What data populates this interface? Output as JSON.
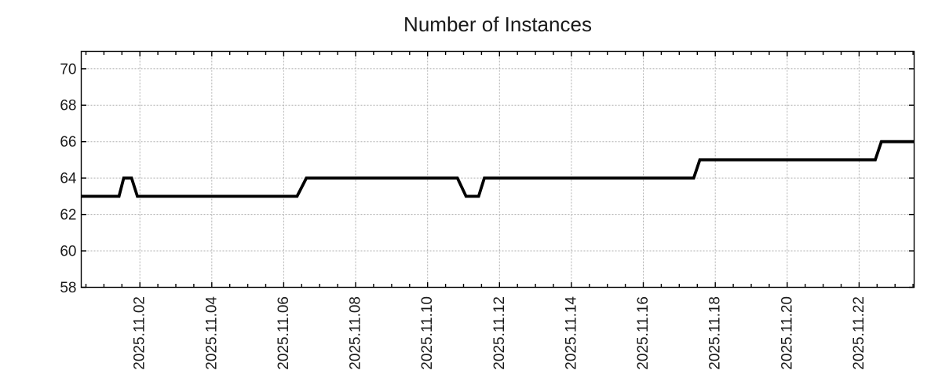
{
  "chart_data": {
    "type": "line",
    "title": "Number of Instances",
    "grid": true,
    "legend": false,
    "x_axis": {
      "tick_labels": [
        "2025.11.02",
        "2025.11.04",
        "2025.11.06",
        "2025.11.08",
        "2025.11.10",
        "2025.11.12",
        "2025.11.14",
        "2025.11.16",
        "2025.11.18",
        "2025.11.20",
        "2025.11.22"
      ],
      "tick_days": [
        2,
        4,
        6,
        8,
        10,
        12,
        14,
        16,
        18,
        20,
        22
      ],
      "minor_tick_interval_days": 0.5,
      "range_days": [
        0.37,
        23.53
      ]
    },
    "y_axis": {
      "tick_labels": [
        "58",
        "60",
        "62",
        "64",
        "66",
        "68",
        "70"
      ],
      "ticks": [
        58,
        60,
        62,
        64,
        66,
        68,
        70
      ],
      "range": [
        58,
        70.96
      ]
    },
    "series": [
      {
        "name": "instances",
        "color": "#000000",
        "points_day_value": [
          [
            0.37,
            63
          ],
          [
            1.42,
            63
          ],
          [
            1.55,
            64
          ],
          [
            1.77,
            64
          ],
          [
            1.93,
            63
          ],
          [
            6.37,
            63
          ],
          [
            6.63,
            64
          ],
          [
            10.83,
            64
          ],
          [
            11.07,
            63
          ],
          [
            11.42,
            63
          ],
          [
            11.58,
            64
          ],
          [
            17.4,
            64
          ],
          [
            17.57,
            65
          ],
          [
            22.45,
            65
          ],
          [
            22.62,
            66
          ],
          [
            23.53,
            66
          ]
        ]
      }
    ],
    "colors": {
      "background": "#ffffff",
      "grid": "#b0b0b0",
      "axis": "#000000",
      "text": "#1a1a1a",
      "line": "#000000"
    }
  }
}
